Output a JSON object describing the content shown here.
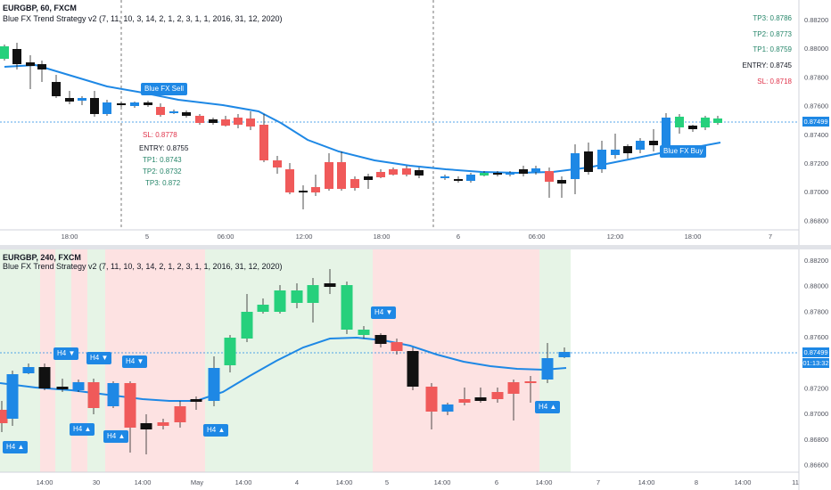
{
  "top": {
    "symbol_title": "EURGBP, 60, FXCM",
    "indicator_title": "Blue FX Trend Strategy v2 (7, 11, 10, 3, 14, 2, 1, 2, 3, 1, 1, 2016, 31, 12, 2020)",
    "levels_right": [
      {
        "label": "TP3: 0.8786",
        "kind": "tp"
      },
      {
        "label": "TP2: 0.8773",
        "kind": "tp"
      },
      {
        "label": "TP1: 0.8759",
        "kind": "tp"
      },
      {
        "label": "ENTRY: 0.8745",
        "kind": "entry"
      },
      {
        "label": "SL: 0.8718",
        "kind": "sl"
      }
    ],
    "levels_left": [
      {
        "label": "SL: 0.8778",
        "kind": "sl"
      },
      {
        "label": "ENTRY: 0.8755",
        "kind": "entry"
      },
      {
        "label": "TP1: 0.8743",
        "kind": "tp"
      },
      {
        "label": "TP2: 0.8732",
        "kind": "tp"
      },
      {
        "label": "TP3: 0.872",
        "kind": "tp"
      }
    ],
    "signal_sell": "Blue FX Sell",
    "signal_buy": "Blue FX Buy",
    "price_ticks": [
      "0.88200",
      "0.88000",
      "0.87800",
      "0.87600",
      "0.87400",
      "0.87200",
      "0.87000",
      "0.86800"
    ],
    "current_price": "0.87499",
    "time_ticks": [
      "18:00",
      "5",
      "06:00",
      "12:00",
      "18:00",
      "6",
      "06:00",
      "12:00",
      "18:00",
      "7"
    ]
  },
  "bottom": {
    "symbol_title": "EURGBP, 240, FXCM",
    "indicator_title": "Blue FX Trend Strategy v2 (7, 11, 10, 3, 14, 2, 1, 2, 3, 1, 1, 2016, 31, 12, 2020)",
    "h4_down": "H4 ▼",
    "h4_up": "H4 ▲",
    "price_ticks": [
      "0.88200",
      "0.88000",
      "0.87800",
      "0.87600",
      "0.87400",
      "0.87200",
      "0.87000",
      "0.86800",
      "0.86600"
    ],
    "current_price": "0.87499",
    "countdown": "01:13:32",
    "time_ticks": [
      "14:00",
      "30",
      "14:00",
      "May",
      "14:00",
      "4",
      "14:00",
      "5",
      "14:00",
      "6",
      "14:00",
      "7",
      "14:00",
      "8",
      "14:00",
      "11"
    ]
  },
  "colors": {
    "bull": "#26d07c",
    "bear": "#f05a5a",
    "neutral": "#111111",
    "blue": "#1e88e5",
    "bg_green": "#e6f4e6",
    "bg_red": "#fde2e2",
    "ma": "#1e88e5"
  }
}
